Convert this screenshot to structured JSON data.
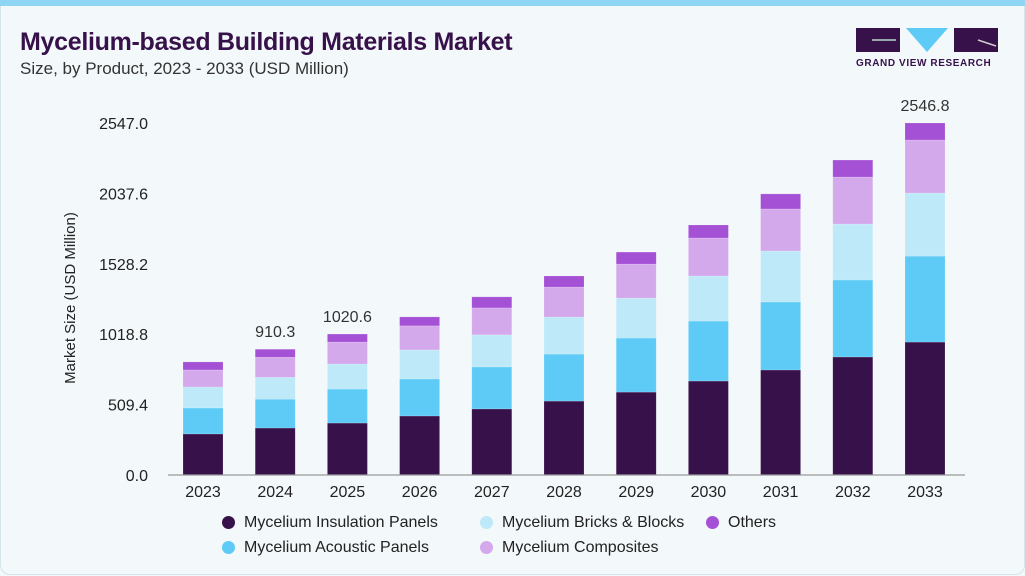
{
  "header": {
    "title": "Mycelium-based Building Materials Market",
    "subtitle": "Size, by Product, 2023 - 2033 (USD Million)",
    "logo_text": "GRAND VIEW RESEARCH"
  },
  "chart_data": {
    "type": "bar",
    "stacked": true,
    "ylabel": "Market Size (USD Million)",
    "xlabel": "",
    "ylim": [
      0,
      2547
    ],
    "yticks": [
      "0.0",
      "509.4",
      "1018.8",
      "1528.2",
      "2037.6",
      "2547.0"
    ],
    "ytick_values": [
      0,
      509.4,
      1018.8,
      1528.2,
      2037.6,
      2547.0
    ],
    "grid": false,
    "legend_position": "bottom",
    "categories": [
      "2023",
      "2024",
      "2025",
      "2026",
      "2027",
      "2028",
      "2029",
      "2030",
      "2031",
      "2032",
      "2033"
    ],
    "series": [
      {
        "name": "Mycelium Insulation Panels",
        "color": "#37114a",
        "values": [
          297,
          340,
          376,
          427,
          478,
          535,
          600,
          680,
          760,
          854,
          962
        ]
      },
      {
        "name": "Mycelium Acoustic Panels",
        "color": "#5ecbf6",
        "values": [
          188,
          209,
          246,
          268,
          304,
          340,
          391,
          434,
          492,
          557,
          622
        ]
      },
      {
        "name": "Mycelium Bricks & Blocks",
        "color": "#bde9f8",
        "values": [
          152,
          158,
          181,
          210,
          232,
          268,
          289,
          326,
          369,
          405,
          456
        ]
      },
      {
        "name": "Mycelium Composites",
        "color": "#d4a9ec",
        "values": [
          123,
          145,
          159,
          174,
          195,
          217,
          246,
          275,
          304,
          340,
          384
        ]
      },
      {
        "name": "Others",
        "color": "#a551d6",
        "values": [
          58,
          58,
          58,
          65,
          80,
          80,
          87,
          94,
          109,
          123,
          123
        ]
      }
    ],
    "data_labels": {
      "2024": "910.3",
      "2025": "1020.6",
      "2033": "2546.8"
    }
  },
  "legend_order": [
    0,
    2,
    4,
    1,
    3
  ]
}
